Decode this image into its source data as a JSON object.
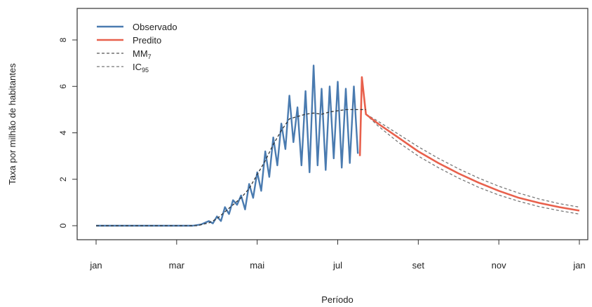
{
  "chart_data": {
    "type": "line",
    "xlabel": "Período",
    "ylabel": "Taxa por milhão de habitantes",
    "xlim": [
      0,
      12
    ],
    "ylim": [
      0,
      8
    ],
    "x_ticks": [
      {
        "value": 0,
        "label": "jan"
      },
      {
        "value": 2,
        "label": "mar"
      },
      {
        "value": 4,
        "label": "mai"
      },
      {
        "value": 6,
        "label": "jul"
      },
      {
        "value": 8,
        "label": "set"
      },
      {
        "value": 10,
        "label": "nov"
      },
      {
        "value": 12,
        "label": "jan"
      }
    ],
    "y_ticks": [
      0,
      2,
      4,
      6,
      8
    ],
    "legend_position": "top-left",
    "legend": [
      {
        "label": "Observado",
        "color": "#4a7bb0",
        "dash": "solid"
      },
      {
        "label": "Predito",
        "color": "#e8604c",
        "dash": "solid"
      },
      {
        "label": "MM",
        "sub": "7",
        "color": "#555555",
        "dash": "dashed"
      },
      {
        "label": "IC",
        "sub": "95",
        "color": "#777777",
        "dash": "dashed"
      }
    ],
    "series": [
      {
        "key": "observado",
        "color": "#4a7bb0",
        "x": [
          0,
          1,
          2,
          2.4,
          2.6,
          2.8,
          2.9,
          3.0,
          3.1,
          3.2,
          3.3,
          3.4,
          3.5,
          3.6,
          3.7,
          3.8,
          3.9,
          4.0,
          4.1,
          4.2,
          4.3,
          4.4,
          4.5,
          4.6,
          4.7,
          4.8,
          4.9,
          5.0,
          5.1,
          5.2,
          5.3,
          5.4,
          5.5,
          5.6,
          5.7,
          5.8,
          5.9,
          6.0,
          6.1,
          6.2,
          6.3,
          6.4,
          6.5
        ],
        "values": [
          0,
          0,
          0,
          0,
          0.05,
          0.2,
          0.1,
          0.4,
          0.2,
          0.8,
          0.5,
          1.1,
          0.9,
          1.3,
          0.7,
          1.8,
          1.2,
          2.3,
          1.5,
          3.2,
          2.1,
          3.8,
          2.6,
          4.4,
          3.3,
          5.6,
          3.6,
          5.1,
          2.6,
          5.8,
          2.3,
          6.9,
          2.6,
          5.9,
          2.4,
          6.0,
          2.9,
          6.2,
          2.5,
          5.9,
          2.7,
          6.0,
          3.1
        ]
      },
      {
        "key": "mm7",
        "color": "#333333",
        "dash": "dashed",
        "x": [
          0,
          2.5,
          2.8,
          3.0,
          3.2,
          3.4,
          3.6,
          3.8,
          4.0,
          4.2,
          4.4,
          4.6,
          4.8,
          5.0,
          5.2,
          5.4,
          5.6,
          5.8,
          6.0,
          6.2,
          6.5,
          6.7
        ],
        "values": [
          0,
          0,
          0.12,
          0.3,
          0.6,
          0.9,
          1.2,
          1.6,
          2.2,
          2.8,
          3.5,
          4.1,
          4.6,
          4.7,
          4.8,
          4.85,
          4.8,
          4.9,
          4.95,
          5.0,
          5.0,
          5.0
        ]
      },
      {
        "key": "predito",
        "color": "#e8604c",
        "x": [
          6.55,
          6.6,
          6.65,
          6.7,
          7.0,
          7.5,
          8.0,
          8.5,
          9.0,
          9.5,
          10.0,
          10.5,
          11.0,
          11.5,
          12.0
        ],
        "values": [
          3.0,
          6.4,
          5.6,
          4.8,
          4.4,
          3.8,
          3.2,
          2.7,
          2.25,
          1.85,
          1.5,
          1.2,
          0.98,
          0.8,
          0.65
        ]
      },
      {
        "key": "ic95_upper",
        "color": "#777777",
        "dash": "dashed",
        "x": [
          6.7,
          7.0,
          7.5,
          8.0,
          8.5,
          9.0,
          9.5,
          10.0,
          10.5,
          11.0,
          11.5,
          12.0
        ],
        "values": [
          4.8,
          4.5,
          3.95,
          3.4,
          2.9,
          2.45,
          2.05,
          1.7,
          1.4,
          1.15,
          0.95,
          0.8
        ]
      },
      {
        "key": "ic95_lower",
        "color": "#777777",
        "dash": "dashed",
        "x": [
          6.7,
          7.0,
          7.5,
          8.0,
          8.5,
          9.0,
          9.5,
          10.0,
          10.5,
          11.0,
          11.5,
          12.0
        ],
        "values": [
          4.8,
          4.3,
          3.6,
          3.0,
          2.5,
          2.05,
          1.65,
          1.32,
          1.05,
          0.82,
          0.65,
          0.5
        ]
      }
    ]
  }
}
